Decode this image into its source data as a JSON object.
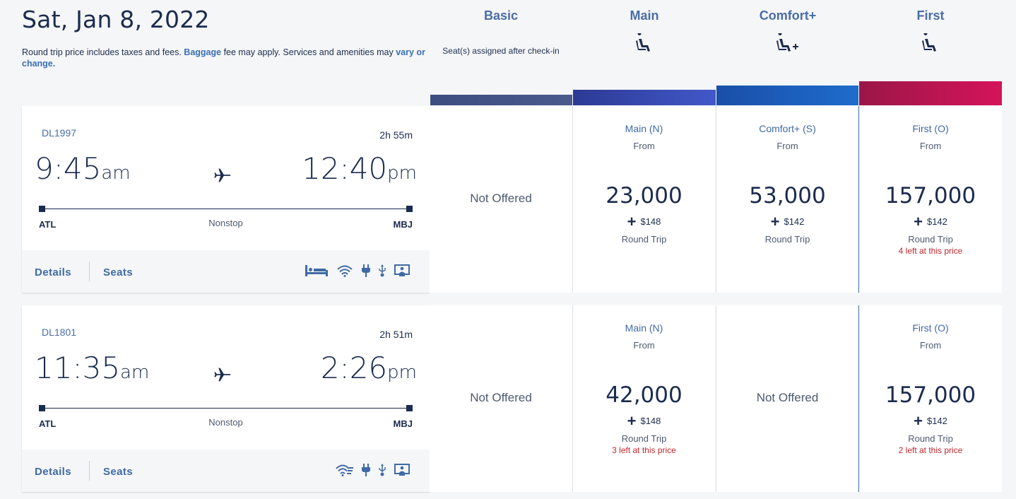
{
  "header": {
    "date": "Sat, Jan 8, 2022",
    "note_part1": "Round trip price includes taxes and fees. ",
    "note_link1": "Baggage",
    "note_part2": " fee may apply. Services and amenities may ",
    "note_link2": "vary or change."
  },
  "columns": [
    {
      "name": "Basic",
      "sub": "Seat(s) assigned after check-in",
      "icon": ""
    },
    {
      "name": "Main",
      "sub": "",
      "icon": "seat-icon"
    },
    {
      "name": "Comfort+",
      "sub": "",
      "icon": "seat-plus-icon"
    },
    {
      "name": "First",
      "sub": "",
      "icon": "seat-icon"
    }
  ],
  "colors": {
    "basic_bar": "#3e4f7f",
    "main_bar": "#2f3f97",
    "comfort_bar": "#1a5fb4",
    "first_bar": "#c4114f",
    "accent": "#3f6aa6",
    "alert": "#c0282d"
  },
  "flights": [
    {
      "number": "DL1997",
      "duration": "2h 55m",
      "dep_time": "9:45",
      "dep_ampm": "am",
      "arr_time": "12:40",
      "arr_ampm": "pm",
      "from": "ATL",
      "to": "MBJ",
      "stops": "Nonstop",
      "details": "Details",
      "seats": "Seats",
      "amenities": [
        "lie-flat-bed-icon",
        "wifi-icon",
        "power-outlet-icon",
        "usb-icon",
        "entertainment-screen-icon"
      ],
      "basic": {
        "not_offered": "Not Offered"
      },
      "main": {
        "name": "Main (N)",
        "from": "From",
        "miles": "23,000",
        "cash": "$148",
        "trip": "Round Trip",
        "left": ""
      },
      "comfort": {
        "name": "Comfort+ (S)",
        "from": "From",
        "miles": "53,000",
        "cash": "$142",
        "trip": "Round Trip",
        "left": ""
      },
      "first": {
        "name": "First (O)",
        "from": "From",
        "miles": "157,000",
        "cash": "$142",
        "trip": "Round Trip",
        "left": "4 left at this price"
      }
    },
    {
      "number": "DL1801",
      "duration": "2h 51m",
      "dep_time": "11:35",
      "dep_ampm": "am",
      "arr_time": "2:26",
      "arr_ampm": "pm",
      "from": "ATL",
      "to": "MBJ",
      "stops": "Nonstop",
      "details": "Details",
      "seats": "Seats",
      "amenities": [
        "fast-wifi-icon",
        "power-outlet-icon",
        "usb-icon",
        "entertainment-screen-icon"
      ],
      "basic": {
        "not_offered": "Not Offered"
      },
      "main": {
        "name": "Main (N)",
        "from": "From",
        "miles": "42,000",
        "cash": "$148",
        "trip": "Round Trip",
        "left": "3 left at this price"
      },
      "comfort": {
        "not_offered": "Not Offered"
      },
      "first": {
        "name": "First (O)",
        "from": "From",
        "miles": "157,000",
        "cash": "$142",
        "trip": "Round Trip",
        "left": "2 left at this price"
      }
    }
  ]
}
